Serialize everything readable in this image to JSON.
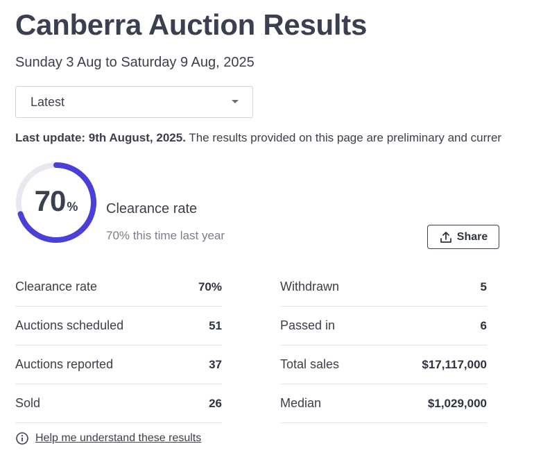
{
  "header": {
    "title": "Canberra Auction Results",
    "date_range": "Sunday 3 Aug to Saturday 9 Aug, 2025"
  },
  "period_select": {
    "selected": "Latest"
  },
  "update": {
    "label": "Last update: 9th August, 2025.",
    "text": "The results provided on this page are preliminary and currer"
  },
  "summary": {
    "clearance_value": "70",
    "clearance_unit": "%",
    "clearance_fraction": 0.7,
    "clearance_label": "Clearance rate",
    "last_year_text": "70% this time last year",
    "share_label": "Share",
    "ring_color": "#4a3fd6",
    "ring_track_color": "#e8e9ee"
  },
  "stats_left": [
    {
      "label": "Clearance rate",
      "value": "70%"
    },
    {
      "label": "Auctions scheduled",
      "value": "51"
    },
    {
      "label": "Auctions reported",
      "value": "37"
    },
    {
      "label": "Sold",
      "value": "26"
    }
  ],
  "stats_right": [
    {
      "label": "Withdrawn",
      "value": "5"
    },
    {
      "label": "Passed in",
      "value": "6"
    },
    {
      "label": "Total sales",
      "value": "$17,117,000"
    },
    {
      "label": "Median",
      "value": "$1,029,000"
    }
  ],
  "help": {
    "text": "Help me understand these results",
    "icon": "info-icon"
  }
}
